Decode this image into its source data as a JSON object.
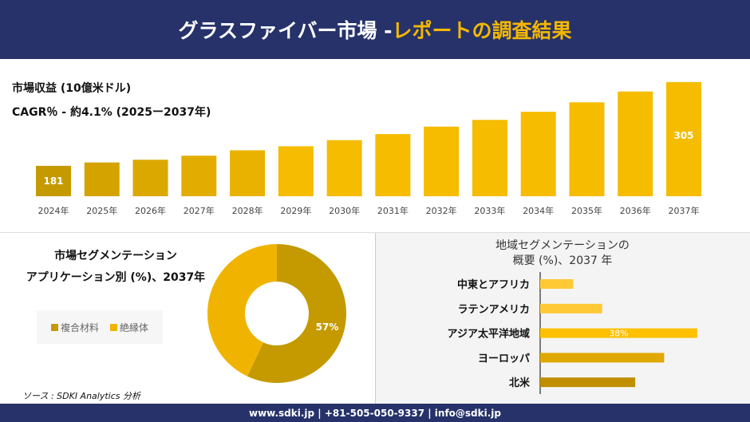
{
  "header": {
    "title_main": "グラスファイバー市場 -",
    "title_accent": "レポートの調査結果"
  },
  "colors": {
    "navy": "#263269",
    "accent": "#f5b800",
    "dark_gold": "#c49a00",
    "gold": "#f0b400"
  },
  "chart_data": [
    {
      "type": "bar",
      "title": "市場収益 (10億米ドル)",
      "subtitle": "CAGR％ - 約4.1% (2025ー2037年)",
      "categories": [
        "2024年",
        "2025年",
        "2026年",
        "2027年",
        "2028年",
        "2029年",
        "2030年",
        "2031年",
        "2032年",
        "2033年",
        "2034年",
        "2035年",
        "2036年",
        "2037年"
      ],
      "values": [
        181,
        186,
        190,
        196,
        204,
        210,
        219,
        228,
        239,
        249,
        261,
        275,
        291,
        305
      ],
      "data_labels": {
        "0": "181",
        "13": "305"
      },
      "grid": false
    },
    {
      "type": "pie",
      "variant": "donut",
      "title": "市場セグメンテーション",
      "subtitle": "アプリケーション別 (%)、2037年",
      "categories": [
        "複合材料",
        "絶縁体"
      ],
      "values": [
        57,
        43
      ],
      "colors": [
        "#c49a00",
        "#f0b400"
      ],
      "data_labels": [
        "57%",
        ""
      ],
      "legend": "left"
    },
    {
      "type": "bar",
      "orientation": "horizontal",
      "title": "地域セグメンテーションの",
      "subtitle": "概要 (%)、2037 年",
      "categories": [
        "中東とアフリカ",
        "ラテンアメリカ",
        "アジア太平洋地域",
        "ヨーロッパ",
        "北米"
      ],
      "values": [
        8,
        15,
        38,
        30,
        23
      ],
      "colors": [
        "#ffc935",
        "#ffc935",
        "#ffc000",
        "#e0a800",
        "#c08e00"
      ],
      "data_labels": [
        "",
        "",
        "38%",
        "",
        ""
      ]
    }
  ],
  "source": "ソース : SDKI Analytics 分析",
  "footer": "www.sdki.jp | +81-505-050-9337 | info@sdki.jp"
}
